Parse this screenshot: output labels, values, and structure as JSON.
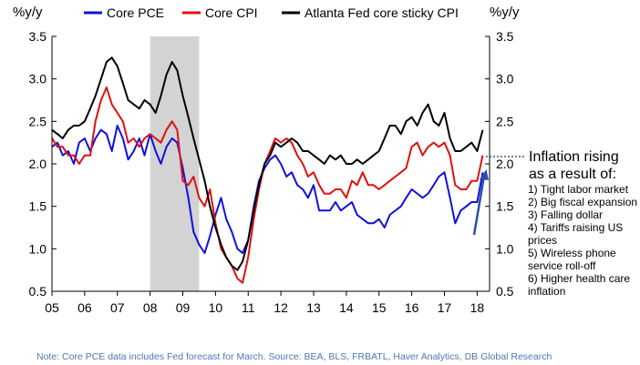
{
  "chart_data": {
    "type": "line",
    "ylim": [
      0.5,
      3.5
    ],
    "yticks": [
      "0.5",
      "1.0",
      "1.5",
      "2.0",
      "2.5",
      "3.0",
      "3.5"
    ],
    "ylabel_left": "%y/y",
    "ylabel_right": "%y/y",
    "x_ticks": [
      "05",
      "06",
      "07",
      "08",
      "09",
      "10",
      "11",
      "12",
      "13",
      "14",
      "15",
      "16",
      "17",
      "18"
    ],
    "recession_shade": [
      2008.0,
      2009.5
    ],
    "legend": {
      "position": "top"
    },
    "series": [
      {
        "name": "Core PCE",
        "color": "#1010e0",
        "x": [
          2005.0,
          2005.17,
          2005.33,
          2005.5,
          2005.67,
          2005.83,
          2006.0,
          2006.17,
          2006.33,
          2006.5,
          2006.67,
          2006.83,
          2007.0,
          2007.17,
          2007.33,
          2007.5,
          2007.67,
          2007.83,
          2008.0,
          2008.17,
          2008.33,
          2008.5,
          2008.67,
          2008.83,
          2009.0,
          2009.17,
          2009.33,
          2009.5,
          2009.67,
          2009.83,
          2010.0,
          2010.17,
          2010.33,
          2010.5,
          2010.67,
          2010.83,
          2011.0,
          2011.17,
          2011.33,
          2011.5,
          2011.67,
          2011.83,
          2012.0,
          2012.17,
          2012.33,
          2012.5,
          2012.67,
          2012.83,
          2013.0,
          2013.17,
          2013.33,
          2013.5,
          2013.67,
          2013.83,
          2014.0,
          2014.17,
          2014.33,
          2014.5,
          2014.67,
          2014.83,
          2015.0,
          2015.17,
          2015.33,
          2015.5,
          2015.67,
          2015.83,
          2016.0,
          2016.17,
          2016.33,
          2016.5,
          2016.67,
          2016.83,
          2017.0,
          2017.17,
          2017.33,
          2017.5,
          2017.67,
          2017.83,
          2018.0,
          2018.17
        ],
        "values": [
          2.2,
          2.25,
          2.1,
          2.15,
          2.0,
          2.25,
          2.3,
          2.15,
          2.3,
          2.4,
          2.35,
          2.15,
          2.45,
          2.3,
          2.05,
          2.15,
          2.3,
          2.1,
          2.35,
          2.15,
          2.0,
          2.2,
          2.3,
          2.25,
          1.95,
          1.6,
          1.2,
          1.05,
          0.95,
          1.15,
          1.4,
          1.6,
          1.35,
          1.2,
          1.0,
          0.95,
          1.1,
          1.5,
          1.8,
          1.95,
          2.05,
          2.1,
          2.0,
          1.85,
          1.9,
          1.75,
          1.7,
          1.6,
          1.75,
          1.45,
          1.45,
          1.45,
          1.55,
          1.45,
          1.5,
          1.55,
          1.4,
          1.35,
          1.3,
          1.3,
          1.35,
          1.25,
          1.4,
          1.45,
          1.5,
          1.6,
          1.7,
          1.65,
          1.6,
          1.65,
          1.75,
          1.85,
          1.9,
          1.6,
          1.3,
          1.45,
          1.5,
          1.55,
          1.55,
          1.9
        ]
      },
      {
        "name": "Core CPI",
        "color": "#e01010",
        "x": [
          2005.0,
          2005.17,
          2005.33,
          2005.5,
          2005.67,
          2005.83,
          2006.0,
          2006.17,
          2006.33,
          2006.5,
          2006.67,
          2006.83,
          2007.0,
          2007.17,
          2007.33,
          2007.5,
          2007.67,
          2007.83,
          2008.0,
          2008.17,
          2008.33,
          2008.5,
          2008.67,
          2008.83,
          2009.0,
          2009.17,
          2009.33,
          2009.5,
          2009.67,
          2009.83,
          2010.0,
          2010.17,
          2010.33,
          2010.5,
          2010.67,
          2010.83,
          2011.0,
          2011.17,
          2011.33,
          2011.5,
          2011.67,
          2011.83,
          2012.0,
          2012.17,
          2012.33,
          2012.5,
          2012.67,
          2012.83,
          2013.0,
          2013.17,
          2013.33,
          2013.5,
          2013.67,
          2013.83,
          2014.0,
          2014.17,
          2014.33,
          2014.5,
          2014.67,
          2014.83,
          2015.0,
          2015.17,
          2015.33,
          2015.5,
          2015.67,
          2015.83,
          2016.0,
          2016.17,
          2016.33,
          2016.5,
          2016.67,
          2016.83,
          2017.0,
          2017.17,
          2017.33,
          2017.5,
          2017.67,
          2017.83,
          2018.0,
          2018.17
        ],
        "values": [
          2.3,
          2.2,
          2.2,
          2.1,
          2.1,
          2.0,
          2.1,
          2.1,
          2.5,
          2.75,
          2.9,
          2.7,
          2.6,
          2.5,
          2.25,
          2.3,
          2.2,
          2.3,
          2.35,
          2.3,
          2.25,
          2.4,
          2.5,
          2.4,
          1.8,
          1.75,
          1.85,
          1.6,
          1.5,
          1.7,
          1.3,
          1.0,
          0.9,
          0.8,
          0.65,
          0.6,
          0.9,
          1.35,
          1.7,
          2.0,
          2.15,
          2.3,
          2.25,
          2.3,
          2.25,
          2.1,
          2.0,
          1.85,
          1.9,
          1.75,
          1.65,
          1.65,
          1.7,
          1.7,
          1.6,
          1.8,
          1.75,
          1.9,
          1.75,
          1.75,
          1.7,
          1.75,
          1.8,
          1.85,
          1.9,
          1.95,
          2.2,
          2.25,
          2.1,
          2.2,
          2.25,
          2.2,
          2.25,
          2.1,
          1.75,
          1.7,
          1.7,
          1.8,
          1.8,
          2.1
        ]
      },
      {
        "name": "Atlanta Fed core sticky CPI",
        "color": "#000000",
        "x": [
          2005.0,
          2005.17,
          2005.33,
          2005.5,
          2005.67,
          2005.83,
          2006.0,
          2006.17,
          2006.33,
          2006.5,
          2006.67,
          2006.83,
          2007.0,
          2007.17,
          2007.33,
          2007.5,
          2007.67,
          2007.83,
          2008.0,
          2008.17,
          2008.33,
          2008.5,
          2008.67,
          2008.83,
          2009.0,
          2009.17,
          2009.33,
          2009.5,
          2009.67,
          2009.83,
          2010.0,
          2010.17,
          2010.33,
          2010.5,
          2010.67,
          2010.83,
          2011.0,
          2011.17,
          2011.33,
          2011.5,
          2011.67,
          2011.83,
          2012.0,
          2012.17,
          2012.33,
          2012.5,
          2012.67,
          2012.83,
          2013.0,
          2013.17,
          2013.33,
          2013.5,
          2013.67,
          2013.83,
          2014.0,
          2014.17,
          2014.33,
          2014.5,
          2014.67,
          2014.83,
          2015.0,
          2015.17,
          2015.33,
          2015.5,
          2015.67,
          2015.83,
          2016.0,
          2016.17,
          2016.33,
          2016.5,
          2016.67,
          2016.83,
          2017.0,
          2017.17,
          2017.33,
          2017.5,
          2017.67,
          2017.83,
          2018.0,
          2018.17
        ],
        "values": [
          2.4,
          2.35,
          2.3,
          2.4,
          2.45,
          2.45,
          2.5,
          2.65,
          2.8,
          3.0,
          3.2,
          3.25,
          3.15,
          2.95,
          2.75,
          2.7,
          2.65,
          2.75,
          2.7,
          2.6,
          2.8,
          3.05,
          3.2,
          3.1,
          2.8,
          2.55,
          2.3,
          2.05,
          1.8,
          1.5,
          1.25,
          1.05,
          0.9,
          0.8,
          0.75,
          0.85,
          1.1,
          1.45,
          1.75,
          2.0,
          2.1,
          2.25,
          2.2,
          2.25,
          2.3,
          2.25,
          2.15,
          2.15,
          2.1,
          2.05,
          2.0,
          2.1,
          2.05,
          2.1,
          2.0,
          2.0,
          2.05,
          2.0,
          2.05,
          2.1,
          2.15,
          2.3,
          2.45,
          2.45,
          2.35,
          2.5,
          2.55,
          2.45,
          2.6,
          2.7,
          2.5,
          2.45,
          2.6,
          2.3,
          2.15,
          2.15,
          2.2,
          2.25,
          2.15,
          2.4
        ]
      }
    ],
    "annotation": {
      "heading_lines": [
        "Inflation rising",
        "as a result of:"
      ],
      "items": [
        "1) Tight labor market",
        "2) Big fiscal expansion",
        "3) Falling dollar",
        "4) Tariffs raising US",
        "prices",
        "5) Wireless phone",
        "service roll-off",
        "6) Higher health care",
        "inflation"
      ]
    },
    "footnote": "Note: Core PCE data includes Fed forecast for March. Source: BEA, BLS, FRBATL, Haver Analytics, DB Global Research"
  }
}
